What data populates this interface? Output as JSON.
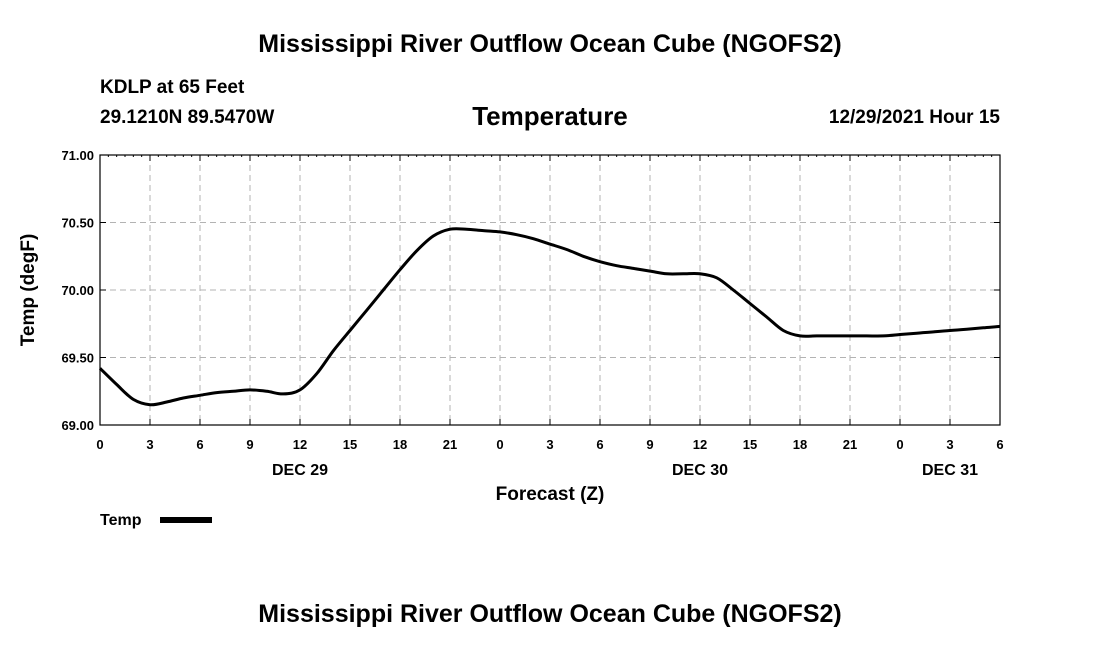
{
  "header": {
    "title": "Mississippi River Outflow Ocean Cube (NGOFS2)",
    "station": "KDLP at 65 Feet",
    "coords": "29.1210N  89.5470W",
    "variable": "Temperature",
    "datetime": "12/29/2021 Hour 15"
  },
  "footer": {
    "title": "Mississippi River Outflow Ocean Cube (NGOFS2)"
  },
  "chart_data": {
    "type": "line",
    "title": "Temperature",
    "xlabel": "Forecast (Z)",
    "ylabel": "Temp (degF)",
    "ylim": [
      69.0,
      71.0
    ],
    "xlim": [
      0,
      54
    ],
    "grid": true,
    "legend_position": "bottom-left",
    "x_ticks": [
      0,
      3,
      6,
      9,
      12,
      15,
      18,
      21,
      24,
      27,
      30,
      33,
      36,
      39,
      42,
      45,
      48,
      51,
      54
    ],
    "x_tick_labels": [
      "0",
      "3",
      "6",
      "9",
      "12",
      "15",
      "18",
      "21",
      "0",
      "3",
      "6",
      "9",
      "12",
      "15",
      "18",
      "21",
      "0",
      "3",
      "6"
    ],
    "y_ticks": [
      69.0,
      69.5,
      70.0,
      70.5,
      71.0
    ],
    "y_tick_labels": [
      "69.00",
      "69.50",
      "70.00",
      "70.50",
      "71.00"
    ],
    "day_labels": [
      {
        "text": "DEC 29",
        "x": 12
      },
      {
        "text": "DEC 30",
        "x": 36
      },
      {
        "text": "DEC 31",
        "x": 51
      }
    ],
    "series": [
      {
        "name": "Temp",
        "x": [
          0,
          1,
          2,
          3,
          4,
          5,
          6,
          7,
          8,
          9,
          10,
          11,
          12,
          13,
          14,
          15,
          16,
          17,
          18,
          19,
          20,
          21,
          22,
          23,
          24,
          25,
          26,
          27,
          28,
          29,
          30,
          31,
          32,
          33,
          34,
          35,
          36,
          37,
          38,
          39,
          40,
          41,
          42,
          43,
          44,
          45,
          46,
          47,
          48,
          49,
          50,
          51,
          52,
          53,
          54
        ],
        "values": [
          69.42,
          69.3,
          69.19,
          69.15,
          69.17,
          69.2,
          69.22,
          69.24,
          69.25,
          69.26,
          69.25,
          69.23,
          69.26,
          69.38,
          69.55,
          69.7,
          69.85,
          70.0,
          70.15,
          70.29,
          70.4,
          70.45,
          70.45,
          70.44,
          70.43,
          70.41,
          70.38,
          70.34,
          70.3,
          70.25,
          70.21,
          70.18,
          70.16,
          70.14,
          70.12,
          70.12,
          70.12,
          70.09,
          70.0,
          69.9,
          69.8,
          69.7,
          69.66,
          69.66,
          69.66,
          69.66,
          69.66,
          69.66,
          69.67,
          69.68,
          69.69,
          69.7,
          69.71,
          69.72,
          69.73
        ],
        "color": "#000000"
      }
    ]
  }
}
